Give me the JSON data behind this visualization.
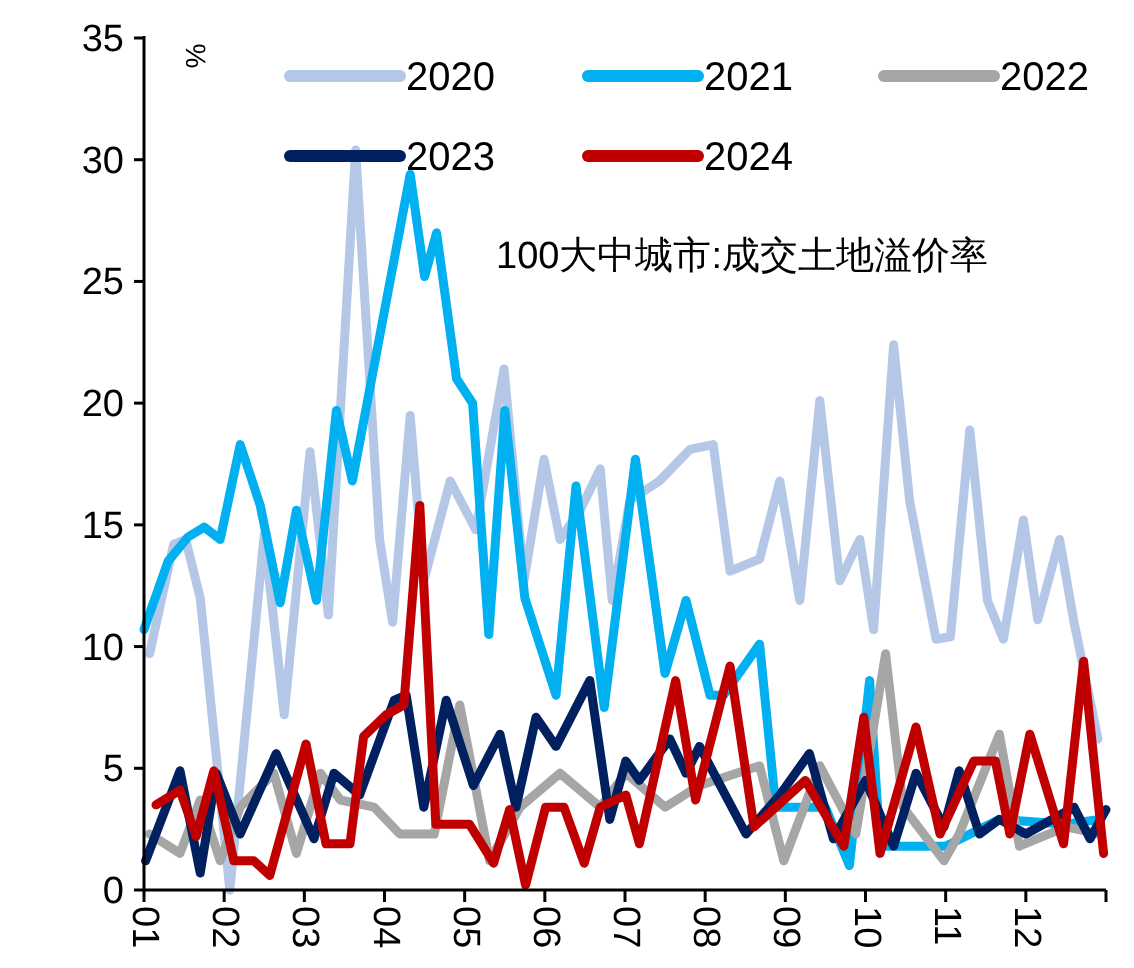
{
  "chart_data": {
    "type": "line",
    "ylabel": "%",
    "annotations": [
      "100大中城市:成交土地溢价率"
    ],
    "xlim": [
      1,
      13
    ],
    "xticks": [
      {
        "value": 1,
        "label": "01"
      },
      {
        "value": 2,
        "label": "02"
      },
      {
        "value": 3,
        "label": "03"
      },
      {
        "value": 4,
        "label": "04"
      },
      {
        "value": 5,
        "label": "05"
      },
      {
        "value": 6,
        "label": "06"
      },
      {
        "value": 7,
        "label": "07"
      },
      {
        "value": 8,
        "label": "08"
      },
      {
        "value": 9,
        "label": "09"
      },
      {
        "value": 10,
        "label": "10"
      },
      {
        "value": 11,
        "label": "11"
      },
      {
        "value": 12,
        "label": "12"
      },
      {
        "value": 13,
        "label": null
      }
    ],
    "ylim": [
      0,
      35
    ],
    "yticks": [
      0,
      5,
      10,
      15,
      20,
      25,
      30,
      35
    ],
    "grid": false,
    "legend": "top",
    "marker": "none",
    "line_style": "solid",
    "series": [
      {
        "name": "2020",
        "color": "#b4c7e7",
        "x": [
          1.07,
          1.37,
          1.52,
          1.7,
          2.07,
          2.5,
          2.75,
          3.07,
          3.3,
          3.64,
          3.94,
          4.1,
          4.32,
          4.49,
          4.82,
          5.14,
          5.49,
          5.74,
          5.99,
          6.19,
          6.44,
          6.69,
          6.84,
          7.06,
          7.43,
          7.81,
          8.1,
          8.31,
          8.68,
          8.93,
          9.18,
          9.43,
          9.68,
          9.93,
          10.1,
          10.35,
          10.55,
          10.88,
          11.06,
          11.3,
          11.52,
          11.72,
          11.97,
          12.15,
          12.42,
          12.6,
          12.9
        ],
        "values": [
          9.7,
          14.2,
          14.4,
          12,
          0,
          14.6,
          7.2,
          18,
          11.3,
          30.4,
          14.4,
          11,
          19.5,
          12.7,
          16.8,
          14.8,
          21.4,
          12.7,
          17.7,
          14.4,
          15.6,
          17.3,
          11.9,
          16,
          16.8,
          18.1,
          18.3,
          13.1,
          13.6,
          16.8,
          11.9,
          20.1,
          12.7,
          14.4,
          10.7,
          22.4,
          16,
          10.3,
          10.4,
          18.9,
          11.9,
          10.3,
          15.2,
          11.1,
          14.4,
          11,
          6.2
        ]
      },
      {
        "name": "2021",
        "color": "#00b0f0",
        "x": [
          1.0,
          1.3,
          1.55,
          1.75,
          1.95,
          2.2,
          2.45,
          2.7,
          2.9,
          3.15,
          3.4,
          3.6,
          4.32,
          4.5,
          4.65,
          4.9,
          5.1,
          5.3,
          5.5,
          5.75,
          6.14,
          6.39,
          6.74,
          7.13,
          7.5,
          7.76,
          8.06,
          8.23,
          8.68,
          8.88,
          9.5,
          9.8,
          10.05,
          10.18,
          11.0,
          11.67,
          12.5,
          12.92
        ],
        "values": [
          10.7,
          13.5,
          14.5,
          14.9,
          14.4,
          18.3,
          15.8,
          11.8,
          15.6,
          11.9,
          19.7,
          16.8,
          29.4,
          25.2,
          27,
          21,
          20,
          10.5,
          19.7,
          12,
          8,
          16.6,
          7.5,
          17.7,
          8.9,
          11.9,
          8,
          8,
          10.1,
          3.4,
          3.4,
          1,
          8.6,
          1.8,
          1.8,
          2.9,
          2.7,
          2.9
        ]
      },
      {
        "name": "2022",
        "color": "#a6a6a6",
        "x": [
          1.07,
          1.45,
          1.7,
          1.95,
          2.2,
          2.62,
          2.9,
          3.2,
          3.45,
          3.87,
          4.19,
          4.62,
          4.94,
          5.31,
          5.69,
          6.19,
          6.69,
          7.01,
          7.5,
          7.93,
          8.68,
          8.98,
          9.43,
          9.88,
          10.25,
          10.47,
          10.98,
          11.17,
          11.67,
          11.92,
          12.5,
          12.92
        ],
        "values": [
          2.3,
          1.5,
          3.7,
          1.2,
          3.4,
          4.8,
          1.5,
          4.8,
          3.7,
          3.4,
          2.3,
          2.3,
          7.6,
          1.2,
          3.4,
          4.8,
          3.4,
          4.8,
          3.4,
          4.3,
          5.1,
          1.2,
          5.1,
          2.3,
          9.7,
          3.4,
          1.2,
          2.3,
          6.4,
          1.8,
          2.6,
          2.3
        ]
      },
      {
        "name": "2023",
        "color": "#002060",
        "x": [
          1.02,
          1.45,
          1.7,
          1.9,
          2.2,
          2.65,
          3.12,
          3.37,
          3.69,
          4.12,
          4.27,
          4.49,
          4.77,
          5.11,
          5.44,
          5.64,
          5.89,
          6.14,
          6.56,
          6.81,
          7.01,
          7.18,
          7.56,
          7.76,
          7.93,
          8.51,
          8.93,
          9.3,
          9.6,
          10.0,
          10.35,
          10.63,
          10.98,
          11.17,
          11.42,
          11.67,
          12.0,
          12.6,
          12.8,
          13.0
        ],
        "values": [
          1.2,
          4.9,
          0.7,
          4.8,
          2.3,
          5.6,
          2.1,
          4.8,
          3.9,
          7.8,
          8,
          3.4,
          7.8,
          4.3,
          6.4,
          3.4,
          7.1,
          5.9,
          8.6,
          2.9,
          5.3,
          4.5,
          6.2,
          4.8,
          5.9,
          2.3,
          3.9,
          5.6,
          2.1,
          4.5,
          1.8,
          4.8,
          2.6,
          4.9,
          2.3,
          2.9,
          2.3,
          3.4,
          2.1,
          3.3
        ]
      },
      {
        "name": "2024",
        "color": "#c00000",
        "x": [
          1.15,
          1.45,
          1.65,
          1.87,
          2.12,
          2.37,
          2.57,
          3.02,
          3.27,
          3.57,
          3.74,
          4.02,
          4.24,
          4.44,
          4.64,
          5.06,
          5.36,
          5.56,
          5.76,
          6.01,
          6.24,
          6.49,
          6.69,
          7.01,
          7.18,
          7.63,
          7.88,
          8.31,
          8.61,
          9.25,
          9.73,
          9.98,
          10.18,
          10.63,
          10.93,
          11.35,
          11.62,
          11.8,
          12.05,
          12.47,
          12.72,
          12.97
        ],
        "values": [
          3.5,
          4.1,
          2.2,
          4.9,
          1.2,
          1.2,
          0.6,
          6,
          1.9,
          1.9,
          6.3,
          7.2,
          7.6,
          15.8,
          2.7,
          2.7,
          1.1,
          3.3,
          0.2,
          3.4,
          3.4,
          1.1,
          3.4,
          3.9,
          1.9,
          8.6,
          3.7,
          9.2,
          2.6,
          4.5,
          1.8,
          7.1,
          1.5,
          6.7,
          2.3,
          5.3,
          5.3,
          2.3,
          6.4,
          1.9,
          9.4,
          1.5
        ]
      }
    ]
  }
}
